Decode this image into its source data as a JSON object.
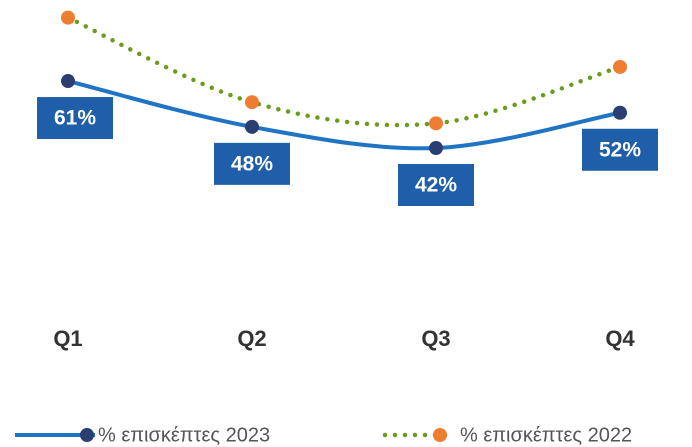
{
  "chart_data": {
    "type": "line",
    "categories": [
      "Q1",
      "Q2",
      "Q3",
      "Q4"
    ],
    "ylim": [
      0,
      84
    ],
    "legend": "bottom",
    "series": [
      {
        "name": "% επισκέπτες 2023",
        "color": "#1f74c4",
        "marker_color": "#2a3e72",
        "style": "solid",
        "values": [
          61,
          48,
          42,
          52
        ],
        "value_labels": [
          "61%",
          "48%",
          "42%",
          "52%"
        ]
      },
      {
        "name": "% επισκέπτες 2022",
        "color": "#6b9a1e",
        "marker_color": "#ee7d31",
        "style": "dotted",
        "values": [
          79,
          55,
          49,
          65
        ]
      }
    ]
  }
}
